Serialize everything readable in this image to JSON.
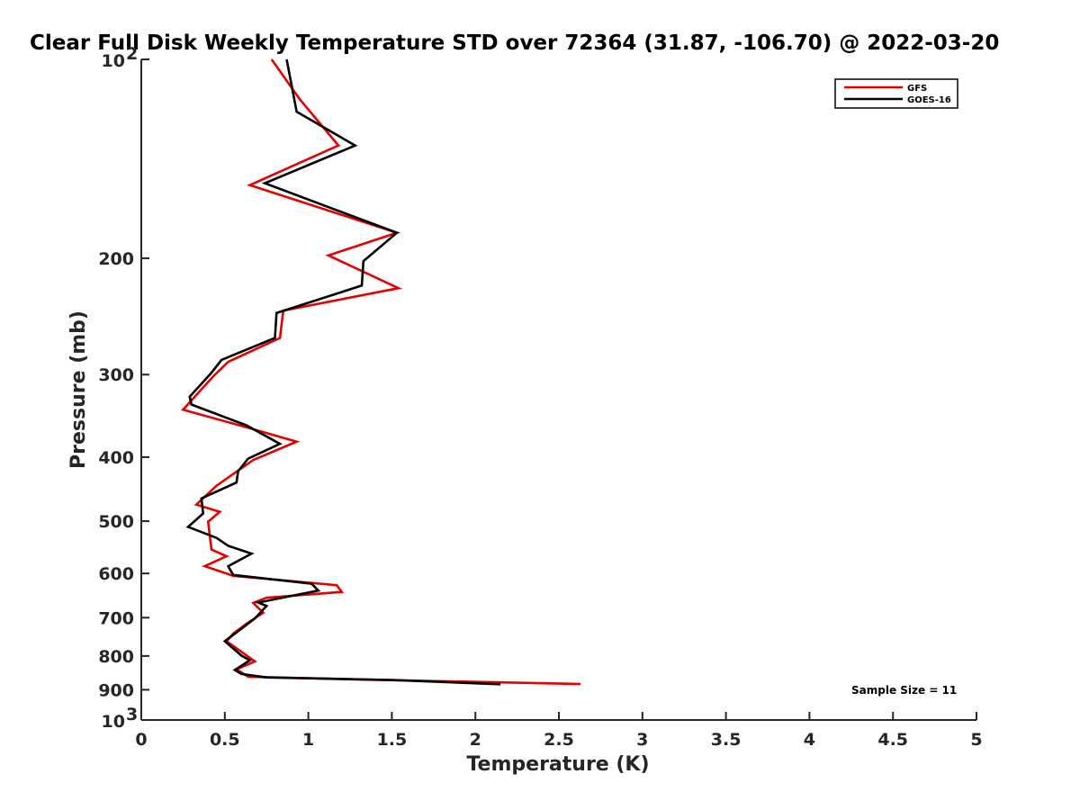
{
  "chart_data": {
    "type": "line",
    "title": "Clear Full Disk Weekly Temperature STD over 72364 (31.87, -106.70) @ 2022-03-20",
    "xlabel": "Temperature (K)",
    "ylabel": "Pressure (mb)",
    "xlim": [
      0,
      5
    ],
    "ylim": [
      100,
      1000
    ],
    "y_scale": "log",
    "y_reversed": true,
    "x_ticks": [
      0,
      0.5,
      1,
      1.5,
      2,
      2.5,
      3,
      3.5,
      4,
      4.5,
      5
    ],
    "x_tick_labels": [
      "0",
      "0.5",
      "1",
      "1.5",
      "2",
      "2.5",
      "3",
      "3.5",
      "4",
      "4.5",
      "5"
    ],
    "y_ticks": [
      {
        "value": 100,
        "base": "10",
        "exp": "2"
      },
      {
        "value": 200,
        "label": "200"
      },
      {
        "value": 300,
        "label": "300"
      },
      {
        "value": 400,
        "label": "400"
      },
      {
        "value": 500,
        "label": "500"
      },
      {
        "value": 600,
        "label": "600"
      },
      {
        "value": 700,
        "label": "700"
      },
      {
        "value": 800,
        "label": "800"
      },
      {
        "value": 900,
        "label": "900"
      },
      {
        "value": 1000,
        "base": "10",
        "exp": "3"
      }
    ],
    "grid": false,
    "legend_position": "top-right",
    "annotation": "Sample Size = 11",
    "series": [
      {
        "name": "GFS",
        "color": "#e60000",
        "points": [
          [
            0.78,
            100
          ],
          [
            0.95,
            115
          ],
          [
            1.18,
            135
          ],
          [
            0.65,
            155
          ],
          [
            1.53,
            183
          ],
          [
            1.12,
            198
          ],
          [
            1.54,
            222
          ],
          [
            0.85,
            240
          ],
          [
            0.83,
            264
          ],
          [
            0.52,
            287
          ],
          [
            0.43,
            302
          ],
          [
            0.25,
            339
          ],
          [
            0.62,
            360
          ],
          [
            0.93,
            379
          ],
          [
            0.67,
            404
          ],
          [
            0.45,
            442
          ],
          [
            0.33,
            472
          ],
          [
            0.47,
            484
          ],
          [
            0.4,
            501
          ],
          [
            0.42,
            552
          ],
          [
            0.51,
            565
          ],
          [
            0.38,
            585
          ],
          [
            0.55,
            605
          ],
          [
            1.17,
            625
          ],
          [
            1.2,
            640
          ],
          [
            0.75,
            653
          ],
          [
            0.67,
            665
          ],
          [
            0.73,
            688
          ],
          [
            0.63,
            715
          ],
          [
            0.55,
            740
          ],
          [
            0.51,
            760
          ],
          [
            0.68,
            815
          ],
          [
            0.57,
            838
          ],
          [
            0.64,
            860
          ],
          [
            1.35,
            869
          ],
          [
            2.63,
            882
          ]
        ]
      },
      {
        "name": "GOES-16",
        "color": "#000000",
        "points": [
          [
            0.87,
            100
          ],
          [
            0.93,
            120
          ],
          [
            1.28,
            135
          ],
          [
            0.74,
            154
          ],
          [
            1.53,
            183
          ],
          [
            1.33,
            202
          ],
          [
            1.32,
            220
          ],
          [
            0.81,
            242
          ],
          [
            0.8,
            264
          ],
          [
            0.48,
            285
          ],
          [
            0.42,
            298
          ],
          [
            0.29,
            324
          ],
          [
            0.3,
            333
          ],
          [
            0.63,
            358
          ],
          [
            0.83,
            382
          ],
          [
            0.64,
            402
          ],
          [
            0.58,
            420
          ],
          [
            0.57,
            437
          ],
          [
            0.36,
            462
          ],
          [
            0.37,
            487
          ],
          [
            0.28,
            510
          ],
          [
            0.45,
            530
          ],
          [
            0.52,
            545
          ],
          [
            0.66,
            560
          ],
          [
            0.52,
            585
          ],
          [
            0.55,
            603
          ],
          [
            1.02,
            622
          ],
          [
            1.06,
            637
          ],
          [
            0.7,
            664
          ],
          [
            0.75,
            672
          ],
          [
            0.68,
            702
          ],
          [
            0.5,
            760
          ],
          [
            0.6,
            799
          ],
          [
            0.65,
            812
          ],
          [
            0.56,
            840
          ],
          [
            0.6,
            852
          ],
          [
            0.75,
            862
          ],
          [
            1.5,
            870
          ],
          [
            2.15,
            883
          ]
        ]
      }
    ]
  }
}
